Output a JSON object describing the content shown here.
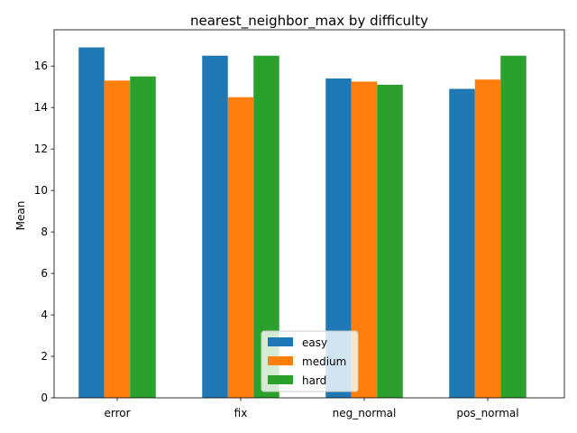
{
  "chart_data": {
    "type": "bar",
    "title": "nearest_neighbor_max by difficulty",
    "xlabel": "",
    "ylabel": "Mean",
    "categories": [
      "error",
      "fix",
      "neg_normal",
      "pos_normal"
    ],
    "series": [
      {
        "name": "easy",
        "color": "#1f77b4",
        "values": [
          16.9,
          16.5,
          15.4,
          14.9
        ]
      },
      {
        "name": "medium",
        "color": "#ff7f0e",
        "values": [
          15.3,
          14.5,
          15.25,
          15.35
        ]
      },
      {
        "name": "hard",
        "color": "#2ca02c",
        "values": [
          15.5,
          16.5,
          15.1,
          16.5
        ]
      }
    ],
    "ylim": [
      0,
      17.75
    ],
    "yticks": [
      0,
      2,
      4,
      6,
      8,
      10,
      12,
      14,
      16
    ],
    "grid": false,
    "legend_position": "bottom-center"
  }
}
